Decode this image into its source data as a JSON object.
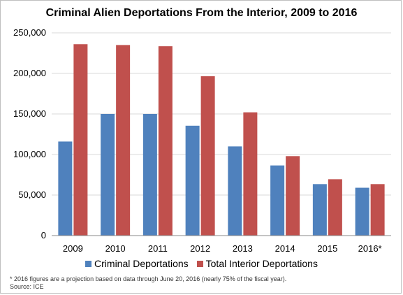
{
  "chart_data": {
    "type": "bar",
    "title": "Criminal Alien Deportations From the Interior, 2009 to 2016",
    "categories": [
      "2009",
      "2010",
      "2011",
      "2012",
      "2013",
      "2014",
      "2015",
      "2016*"
    ],
    "series": [
      {
        "name": "Criminal Deportations",
        "color": "#4f81bd",
        "values": [
          116000,
          150000,
          150000,
          135500,
          110000,
          86500,
          63500,
          59000
        ]
      },
      {
        "name": "Total Interior Deportations",
        "color": "#c0504d",
        "values": [
          236000,
          235000,
          233500,
          196500,
          152000,
          98000,
          69500,
          63500
        ]
      }
    ],
    "ylim": [
      0,
      250000
    ],
    "yticks": [
      "0",
      "50,000",
      "100,000",
      "150,000",
      "200,000",
      "250,000"
    ],
    "grid": true,
    "legend_position": "bottom"
  },
  "footnote": {
    "line1": "* 2016 figures are a projection based on data through June 20, 2016 (nearly 75% of the fiscal year).",
    "line2": "Source: ICE"
  }
}
